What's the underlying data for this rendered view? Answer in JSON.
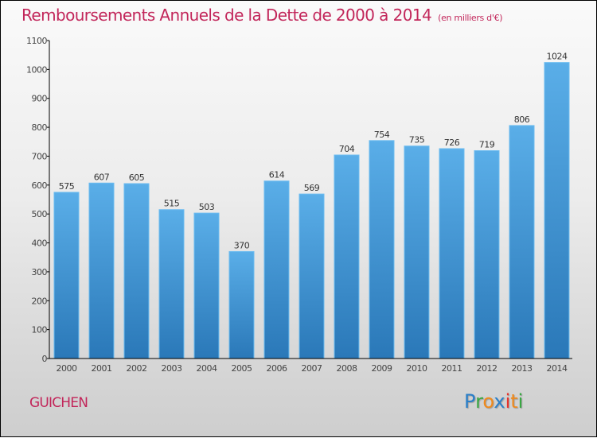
{
  "title": "Remboursements Annuels de la Dette de 2000 à 2014",
  "subtitle": "(en milliers d'€)",
  "city": "GUICHEN",
  "logo": {
    "letters": [
      {
        "ch": "P",
        "color": "#2a7fc9"
      },
      {
        "ch": "r",
        "color": "#3aa843"
      },
      {
        "ch": "o",
        "color": "#f08a1c"
      },
      {
        "ch": "x",
        "color": "#2a7fc9"
      },
      {
        "ch": "i",
        "color": "#e8322b"
      },
      {
        "ch": "t",
        "color": "#f08a1c"
      },
      {
        "ch": "i",
        "color": "#3aa843"
      }
    ]
  },
  "colors": {
    "title": "#c2265a",
    "bar_top": "#5aaee8",
    "bar_bottom": "#2a78b8",
    "axis": "#000000"
  },
  "chart_data": {
    "type": "bar",
    "title": "Remboursements Annuels de la Dette de 2000 à 2014",
    "subtitle": "(en milliers d'€)",
    "xlabel": "",
    "ylabel": "",
    "categories": [
      "2000",
      "2001",
      "2002",
      "2003",
      "2004",
      "2005",
      "2006",
      "2007",
      "2008",
      "2009",
      "2010",
      "2011",
      "2012",
      "2013",
      "2014"
    ],
    "values": [
      575,
      607,
      605,
      515,
      503,
      370,
      614,
      569,
      704,
      754,
      735,
      726,
      719,
      806,
      1024
    ],
    "ylim": [
      0,
      1100
    ],
    "yticks": [
      0,
      100,
      200,
      300,
      400,
      500,
      600,
      700,
      800,
      900,
      1000,
      1100
    ],
    "grid": false,
    "legend": "none"
  }
}
